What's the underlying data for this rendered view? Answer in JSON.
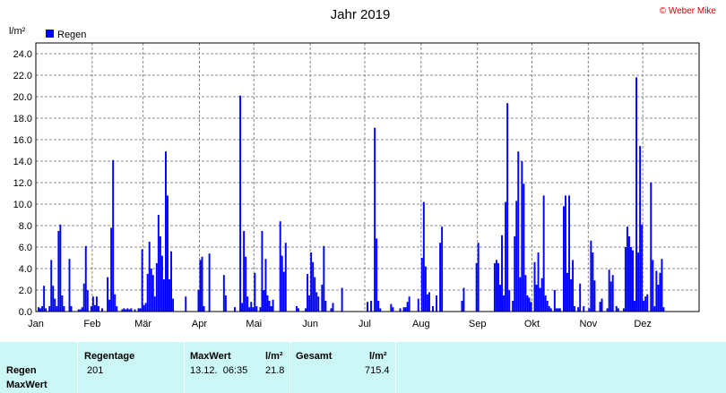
{
  "chart_data": {
    "type": "bar",
    "title": "Jahr 2019",
    "ylabel": "l/m²",
    "ylim": [
      0,
      25
    ],
    "yticks": [
      "0.0",
      "2.0",
      "4.0",
      "6.0",
      "8.0",
      "10.0",
      "12.0",
      "14.0",
      "16.0",
      "18.0",
      "20.0",
      "22.0",
      "24.0"
    ],
    "months": [
      "Jan",
      "Feb",
      "Mär",
      "Apr",
      "Mai",
      "Jun",
      "Jul",
      "Aug",
      "Sep",
      "Okt",
      "Nov",
      "Dez"
    ],
    "x_range": [
      1,
      365
    ],
    "grid": true,
    "legend": {
      "position": "top-left",
      "entries": [
        "Regen"
      ]
    },
    "series": [
      {
        "name": "Regen",
        "color": "#0000ff",
        "points": [
          [
            2,
            0.4
          ],
          [
            3,
            0.3
          ],
          [
            4,
            0.5
          ],
          [
            5,
            2.4
          ],
          [
            6,
            0.3
          ],
          [
            8,
            0.5
          ],
          [
            9,
            4.8
          ],
          [
            10,
            2.4
          ],
          [
            11,
            1.2
          ],
          [
            12,
            0.5
          ],
          [
            13,
            7.5
          ],
          [
            14,
            8.1
          ],
          [
            15,
            1.5
          ],
          [
            16,
            0.5
          ],
          [
            19,
            4.9
          ],
          [
            20,
            0.5
          ],
          [
            24,
            0.2
          ],
          [
            25,
            0.2
          ],
          [
            26,
            0.4
          ],
          [
            27,
            2.6
          ],
          [
            28,
            6.1
          ],
          [
            29,
            2.0
          ],
          [
            31,
            0.5
          ],
          [
            32,
            1.4
          ],
          [
            33,
            0.6
          ],
          [
            34,
            1.4
          ],
          [
            35,
            0.5
          ],
          [
            37,
            0.3
          ],
          [
            40,
            3.2
          ],
          [
            41,
            1.1
          ],
          [
            42,
            7.8
          ],
          [
            43,
            14.1
          ],
          [
            44,
            1.6
          ],
          [
            45,
            0.5
          ],
          [
            48,
            0.2
          ],
          [
            49,
            0.3
          ],
          [
            50,
            0.2
          ],
          [
            51,
            0.3
          ],
          [
            52,
            0.2
          ],
          [
            53,
            0.3
          ],
          [
            55,
            0.2
          ],
          [
            57,
            0.3
          ],
          [
            58,
            0.3
          ],
          [
            59,
            5.8
          ],
          [
            60,
            0.6
          ],
          [
            61,
            0.8
          ],
          [
            62,
            3.5
          ],
          [
            63,
            6.5
          ],
          [
            64,
            4.0
          ],
          [
            65,
            3.4
          ],
          [
            66,
            1.4
          ],
          [
            67,
            4.5
          ],
          [
            68,
            9.0
          ],
          [
            69,
            7.0
          ],
          [
            70,
            5.2
          ],
          [
            71,
            3.0
          ],
          [
            72,
            14.9
          ],
          [
            73,
            10.8
          ],
          [
            74,
            3.0
          ],
          [
            75,
            5.6
          ],
          [
            76,
            1.2
          ],
          [
            83,
            1.4
          ],
          [
            90,
            2.0
          ],
          [
            91,
            4.8
          ],
          [
            92,
            5.1
          ],
          [
            93,
            0.5
          ],
          [
            96,
            5.4
          ],
          [
            104,
            3.4
          ],
          [
            105,
            1.5
          ],
          [
            110,
            0.4
          ],
          [
            113,
            20.1
          ],
          [
            114,
            0.8
          ],
          [
            115,
            7.5
          ],
          [
            116,
            5.1
          ],
          [
            117,
            1.4
          ],
          [
            118,
            0.4
          ],
          [
            119,
            0.9
          ],
          [
            120,
            0.4
          ],
          [
            121,
            3.6
          ],
          [
            122,
            0.5
          ],
          [
            124,
            0.4
          ],
          [
            125,
            7.5
          ],
          [
            126,
            2.0
          ],
          [
            127,
            4.9
          ],
          [
            128,
            1.5
          ],
          [
            129,
            1.0
          ],
          [
            130,
            0.5
          ],
          [
            131,
            1.1
          ],
          [
            135,
            8.4
          ],
          [
            136,
            5.2
          ],
          [
            137,
            3.7
          ],
          [
            138,
            6.4
          ],
          [
            144,
            0.5
          ],
          [
            145,
            0.3
          ],
          [
            149,
            0.3
          ],
          [
            150,
            3.5
          ],
          [
            151,
            1.5
          ],
          [
            152,
            5.5
          ],
          [
            153,
            4.6
          ],
          [
            154,
            3.2
          ],
          [
            155,
            1.8
          ],
          [
            156,
            1.4
          ],
          [
            158,
            2.5
          ],
          [
            159,
            6.1
          ],
          [
            160,
            1.0
          ],
          [
            163,
            0.3
          ],
          [
            164,
            0.8
          ],
          [
            169,
            2.2
          ],
          [
            183,
            0.9
          ],
          [
            185,
            1.0
          ],
          [
            187,
            17.1
          ],
          [
            188,
            6.8
          ],
          [
            189,
            1.0
          ],
          [
            190,
            0.3
          ],
          [
            196,
            0.7
          ],
          [
            197,
            0.4
          ],
          [
            201,
            0.3
          ],
          [
            203,
            0.4
          ],
          [
            204,
            0.4
          ],
          [
            205,
            0.9
          ],
          [
            206,
            1.4
          ],
          [
            211,
            1.2
          ],
          [
            213,
            5.0
          ],
          [
            214,
            10.2
          ],
          [
            215,
            4.2
          ],
          [
            216,
            1.6
          ],
          [
            217,
            1.8
          ],
          [
            219,
            0.5
          ],
          [
            221,
            1.5
          ],
          [
            223,
            6.4
          ],
          [
            224,
            7.9
          ],
          [
            235,
            1.0
          ],
          [
            236,
            2.2
          ],
          [
            243,
            4.5
          ],
          [
            244,
            6.4
          ],
          [
            253,
            4.5
          ],
          [
            254,
            4.8
          ],
          [
            255,
            4.5
          ],
          [
            256,
            2.5
          ],
          [
            257,
            7.1
          ],
          [
            258,
            1.5
          ],
          [
            259,
            10.2
          ],
          [
            260,
            19.4
          ],
          [
            261,
            2.0
          ],
          [
            263,
            1.0
          ],
          [
            264,
            7.0
          ],
          [
            265,
            10.3
          ],
          [
            266,
            14.9
          ],
          [
            267,
            3.2
          ],
          [
            268,
            14.0
          ],
          [
            269,
            11.9
          ],
          [
            270,
            3.4
          ],
          [
            271,
            1.5
          ],
          [
            272,
            1.3
          ],
          [
            273,
            0.9
          ],
          [
            275,
            4.6
          ],
          [
            276,
            2.5
          ],
          [
            277,
            5.5
          ],
          [
            278,
            2.2
          ],
          [
            279,
            3.1
          ],
          [
            280,
            10.8
          ],
          [
            281,
            1.5
          ],
          [
            282,
            1.0
          ],
          [
            283,
            0.5
          ],
          [
            284,
            0.3
          ],
          [
            286,
            2.0
          ],
          [
            287,
            0.3
          ],
          [
            288,
            0.3
          ],
          [
            289,
            0.3
          ],
          [
            291,
            9.8
          ],
          [
            292,
            10.8
          ],
          [
            293,
            3.6
          ],
          [
            294,
            10.8
          ],
          [
            295,
            3.0
          ],
          [
            296,
            4.8
          ],
          [
            297,
            0.5
          ],
          [
            299,
            0.4
          ],
          [
            300,
            2.6
          ],
          [
            302,
            0.5
          ],
          [
            305,
            0.3
          ],
          [
            306,
            6.6
          ],
          [
            307,
            5.5
          ],
          [
            308,
            2.9
          ],
          [
            311,
            0.9
          ],
          [
            312,
            1.2
          ],
          [
            315,
            0.3
          ],
          [
            316,
            3.9
          ],
          [
            317,
            2.8
          ],
          [
            318,
            3.4
          ],
          [
            320,
            0.5
          ],
          [
            321,
            0.3
          ],
          [
            324,
            0.3
          ],
          [
            325,
            6.0
          ],
          [
            326,
            7.9
          ],
          [
            327,
            7.0
          ],
          [
            328,
            6.0
          ],
          [
            329,
            5.7
          ],
          [
            330,
            1.0
          ],
          [
            331,
            21.8
          ],
          [
            332,
            5.5
          ],
          [
            333,
            15.4
          ],
          [
            334,
            8.1
          ],
          [
            335,
            1.0
          ],
          [
            336,
            1.4
          ],
          [
            337,
            1.6
          ],
          [
            339,
            12.0
          ],
          [
            340,
            4.8
          ],
          [
            341,
            0.5
          ],
          [
            342,
            3.8
          ],
          [
            343,
            2.5
          ],
          [
            344,
            3.6
          ],
          [
            345,
            4.9
          ],
          [
            346,
            0.4
          ]
        ]
      }
    ]
  },
  "copyright": "© Weber Mike",
  "table": {
    "row_labels": [
      "Regen",
      "MaxWert"
    ],
    "regentage_header": "Regentage",
    "regentage_value": "201",
    "maxwert_header": "MaxWert",
    "maxwert_unit": "l/m²",
    "maxwert_datetime": "13.12.  06:35",
    "maxwert_value": "21.8",
    "gesamt_header": "Gesamt",
    "gesamt_unit": "l/m²",
    "gesamt_value": "715.4"
  }
}
